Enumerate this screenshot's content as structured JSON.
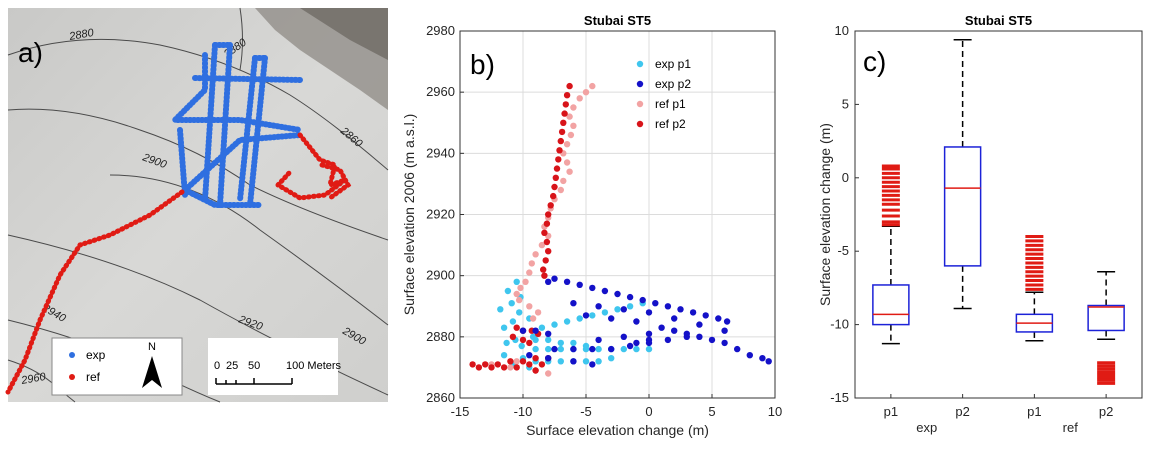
{
  "panel_a": {
    "label": "a)",
    "contours": [
      "2880",
      "2880",
      "2860",
      "2900",
      "2940",
      "2920",
      "2900",
      "2960"
    ],
    "legend": [
      {
        "label": "exp",
        "color": "#2f6fe0"
      },
      {
        "label": "ref",
        "color": "#e01b14"
      }
    ],
    "north": "N",
    "scale_ticks": [
      "0",
      "25",
      "50",
      "100 Meters"
    ]
  },
  "chart_data": [
    {
      "type": "scatter",
      "panel_label": "b)",
      "title": "Stubai ST5",
      "xlabel": "Surface elevation change (m)",
      "ylabel": "Surface elevation 2006 (m a.s.l.)",
      "xlim": [
        -15,
        10
      ],
      "ylim": [
        2860,
        2980
      ],
      "xticks": [
        -15,
        -10,
        -5,
        0,
        5,
        10
      ],
      "yticks": [
        2860,
        2880,
        2900,
        2920,
        2940,
        2960,
        2980
      ],
      "grid": true,
      "legend_position": "top-right",
      "series": [
        {
          "name": "exp p1",
          "color": "#3fc6ee",
          "points": [
            [
              -10.5,
              2898
            ],
            [
              -11.2,
              2895
            ],
            [
              -10.2,
              2893
            ],
            [
              -10.9,
              2891
            ],
            [
              -11.8,
              2889
            ],
            [
              -10.3,
              2888
            ],
            [
              -9.5,
              2886
            ],
            [
              -10.8,
              2885
            ],
            [
              -11.5,
              2883
            ],
            [
              -10.0,
              2882
            ],
            [
              -9.2,
              2880
            ],
            [
              -10.6,
              2879
            ],
            [
              -11.3,
              2878
            ],
            [
              -10.1,
              2877
            ],
            [
              -9.0,
              2876
            ],
            [
              -8.0,
              2876
            ],
            [
              -7.0,
              2876
            ],
            [
              -6.0,
              2876
            ],
            [
              -5.0,
              2876
            ],
            [
              -4.0,
              2876
            ],
            [
              -3.0,
              2876
            ],
            [
              -2.0,
              2876
            ],
            [
              -1.0,
              2876
            ],
            [
              0.0,
              2876
            ],
            [
              -8.5,
              2883
            ],
            [
              -7.5,
              2884
            ],
            [
              -6.5,
              2885
            ],
            [
              -5.5,
              2886
            ],
            [
              -4.5,
              2887
            ],
            [
              -3.5,
              2888
            ],
            [
              -2.5,
              2889
            ],
            [
              -1.5,
              2890
            ],
            [
              -0.5,
              2891
            ],
            [
              -9.0,
              2879
            ],
            [
              -8.0,
              2879
            ],
            [
              -7.0,
              2878
            ],
            [
              -6.0,
              2878
            ],
            [
              -5.0,
              2877
            ],
            [
              -10.0,
              2873
            ],
            [
              -9.0,
              2872
            ],
            [
              -8.0,
              2872
            ],
            [
              -7.0,
              2872
            ],
            [
              -6.0,
              2872
            ],
            [
              -5.0,
              2872
            ],
            [
              -4.0,
              2872
            ],
            [
              -3.0,
              2873
            ],
            [
              -11.5,
              2874
            ],
            [
              -10.8,
              2871
            ],
            [
              -9.5,
              2870
            ]
          ]
        },
        {
          "name": "exp p2",
          "color": "#1411c8",
          "points": [
            [
              -8.0,
              2898
            ],
            [
              -7.5,
              2899
            ],
            [
              -6.5,
              2898
            ],
            [
              -5.5,
              2897
            ],
            [
              -4.5,
              2896
            ],
            [
              -3.5,
              2895
            ],
            [
              -2.5,
              2894
            ],
            [
              -1.5,
              2893
            ],
            [
              -0.5,
              2892
            ],
            [
              0.5,
              2891
            ],
            [
              1.5,
              2890
            ],
            [
              2.5,
              2889
            ],
            [
              3.5,
              2888
            ],
            [
              4.5,
              2887
            ],
            [
              5.5,
              2886
            ],
            [
              6.2,
              2885
            ],
            [
              -6.0,
              2891
            ],
            [
              -4.0,
              2890
            ],
            [
              -2.0,
              2889
            ],
            [
              0.0,
              2888
            ],
            [
              2.0,
              2886
            ],
            [
              4.0,
              2884
            ],
            [
              6.0,
              2882
            ],
            [
              -5.0,
              2887
            ],
            [
              -3.0,
              2886
            ],
            [
              -1.0,
              2885
            ],
            [
              1.0,
              2883
            ],
            [
              3.0,
              2881
            ],
            [
              4.0,
              2880
            ],
            [
              5.0,
              2879
            ],
            [
              6.0,
              2878
            ],
            [
              7.0,
              2876
            ],
            [
              8.0,
              2874
            ],
            [
              9.0,
              2873
            ],
            [
              9.5,
              2872
            ],
            [
              3.0,
              2880
            ],
            [
              1.5,
              2879
            ],
            [
              0.0,
              2878
            ],
            [
              -1.5,
              2877
            ],
            [
              -3.0,
              2876
            ],
            [
              -4.5,
              2876
            ],
            [
              -6.0,
              2876
            ],
            [
              -7.5,
              2876
            ],
            [
              2.0,
              2882
            ],
            [
              0.0,
              2881
            ],
            [
              -2.0,
              2880
            ],
            [
              -4.0,
              2879
            ],
            [
              -10.0,
              2882
            ],
            [
              -9.0,
              2882
            ],
            [
              -8.0,
              2881
            ],
            [
              -9.5,
              2874
            ],
            [
              -8.0,
              2873
            ],
            [
              -6.0,
              2872
            ],
            [
              -4.5,
              2871
            ],
            [
              0.0,
              2879
            ],
            [
              -1.0,
              2878
            ]
          ]
        },
        {
          "name": "ref p1",
          "color": "#f2a3a3",
          "points": [
            [
              -4.5,
              2962
            ],
            [
              -5.0,
              2960
            ],
            [
              -5.5,
              2958
            ],
            [
              -6.0,
              2955
            ],
            [
              -6.3,
              2952
            ],
            [
              -6.0,
              2949
            ],
            [
              -6.2,
              2946
            ],
            [
              -6.5,
              2943
            ],
            [
              -6.8,
              2940
            ],
            [
              -6.5,
              2937
            ],
            [
              -6.3,
              2934
            ],
            [
              -6.8,
              2931
            ],
            [
              -7.0,
              2928
            ],
            [
              -7.5,
              2925
            ],
            [
              -7.8,
              2922
            ],
            [
              -8.0,
              2919
            ],
            [
              -8.3,
              2916
            ],
            [
              -8.0,
              2913
            ],
            [
              -8.5,
              2910
            ],
            [
              -9.0,
              2907
            ],
            [
              -9.3,
              2904
            ],
            [
              -9.5,
              2901
            ],
            [
              -9.8,
              2898
            ],
            [
              -10.2,
              2896
            ],
            [
              -10.5,
              2894
            ],
            [
              -10.3,
              2892
            ],
            [
              -9.5,
              2890
            ],
            [
              -8.8,
              2888
            ],
            [
              -9.2,
              2886
            ],
            [
              -12.5,
              2871
            ],
            [
              -11.0,
              2870
            ],
            [
              -9.0,
              2869
            ],
            [
              -8.0,
              2868
            ],
            [
              -10.5,
              2872
            ]
          ]
        },
        {
          "name": "ref p2",
          "color": "#d8141a",
          "points": [
            [
              -6.3,
              2962
            ],
            [
              -6.5,
              2959
            ],
            [
              -6.6,
              2956
            ],
            [
              -6.7,
              2953
            ],
            [
              -6.8,
              2950
            ],
            [
              -6.9,
              2947
            ],
            [
              -7.0,
              2944
            ],
            [
              -7.1,
              2941
            ],
            [
              -7.2,
              2938
            ],
            [
              -7.3,
              2935
            ],
            [
              -7.4,
              2932
            ],
            [
              -7.5,
              2929
            ],
            [
              -7.6,
              2926
            ],
            [
              -7.8,
              2923
            ],
            [
              -8.0,
              2920
            ],
            [
              -8.1,
              2917
            ],
            [
              -8.3,
              2914
            ],
            [
              -8.1,
              2911
            ],
            [
              -8.0,
              2908
            ],
            [
              -8.2,
              2905
            ],
            [
              -8.4,
              2902
            ],
            [
              -8.3,
              2900
            ],
            [
              -10.5,
              2883
            ],
            [
              -10.0,
              2882
            ],
            [
              -9.3,
              2882
            ],
            [
              -8.8,
              2881
            ],
            [
              -10.8,
              2880
            ],
            [
              -10.0,
              2879
            ],
            [
              -9.5,
              2878
            ],
            [
              -14.0,
              2871
            ],
            [
              -13.0,
              2871
            ],
            [
              -12.0,
              2871
            ],
            [
              -11.0,
              2872
            ],
            [
              -10.0,
              2872
            ],
            [
              -9.0,
              2873
            ],
            [
              -8.0,
              2873
            ],
            [
              -13.5,
              2870
            ],
            [
              -12.5,
              2870
            ],
            [
              -11.5,
              2870
            ],
            [
              -10.5,
              2870
            ],
            [
              -9.5,
              2871
            ],
            [
              -8.5,
              2871
            ],
            [
              -9.0,
              2869
            ]
          ]
        }
      ]
    },
    {
      "type": "box",
      "panel_label": "c)",
      "title": "Stubai ST5",
      "ylabel": "Surface elevation change (m)",
      "ylim": [
        -15,
        10
      ],
      "yticks": [
        -15,
        -10,
        -5,
        0,
        5,
        10
      ],
      "grid": false,
      "tick_labels": [
        "p1",
        "p2",
        "p1",
        "p2"
      ],
      "group_labels": [
        "exp",
        "ref"
      ],
      "boxes": [
        {
          "label": "p1",
          "group": "exp",
          "median": -9.3,
          "q1": -10.0,
          "q3": -7.3,
          "whisker_low": -11.3,
          "whisker_high": -3.3,
          "outliers": [
            -3.2,
            -3.0,
            -2.6,
            -2.2,
            -1.8,
            -1.5,
            -1.2,
            -0.9,
            -0.6,
            -0.3,
            0.0,
            0.3,
            0.6,
            0.8
          ]
        },
        {
          "label": "p2",
          "group": "exp",
          "median": -0.7,
          "q1": -6.0,
          "q3": 2.1,
          "whisker_low": -8.9,
          "whisker_high": 9.4,
          "outliers": []
        },
        {
          "label": "p1",
          "group": "ref",
          "median": -9.9,
          "q1": -10.5,
          "q3": -9.3,
          "whisker_low": -11.1,
          "whisker_high": -7.8,
          "outliers": [
            -7.6,
            -7.3,
            -7.0,
            -6.7,
            -6.4,
            -6.1,
            -5.8,
            -5.5,
            -5.2,
            -4.9,
            -4.6,
            -4.3,
            -4.0
          ]
        },
        {
          "label": "p2",
          "group": "ref",
          "median": -8.8,
          "q1": -10.4,
          "q3": -8.7,
          "whisker_low": -11.0,
          "whisker_high": -6.4,
          "outliers": [
            -12.6,
            -12.8,
            -13.0,
            -13.2,
            -13.4,
            -13.6,
            -13.8,
            -14.0
          ]
        }
      ],
      "box_color": "#1c22d8",
      "median_color": "#e01b14",
      "whisker_color": "#000000",
      "outlier_color": "#e01b14"
    }
  ]
}
